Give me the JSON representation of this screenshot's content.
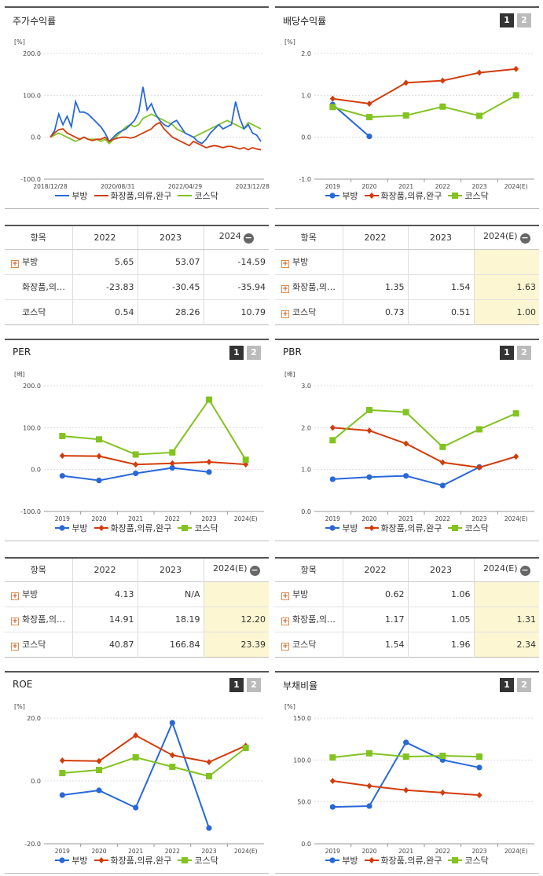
{
  "legend": [
    "부방",
    "화장품,의류,완구",
    "코스닥"
  ],
  "colors": {
    "s1": "#2868d8",
    "s2": "#d23c0a",
    "s3": "#82c320",
    "est": "#fdf6d2"
  },
  "panels": {
    "stock": {
      "title": "주가수익률",
      "unit": "[%]"
    },
    "dividend": {
      "title": "배당수익률",
      "unit": "[%]",
      "pages": [
        "1",
        "2"
      ]
    },
    "per": {
      "title": "PER",
      "unit": "[배]",
      "pages": [
        "1",
        "2"
      ]
    },
    "pbr": {
      "title": "PBR",
      "unit": "[배]",
      "pages": [
        "1",
        "2"
      ]
    },
    "roe": {
      "title": "ROE",
      "unit": "[%]",
      "pages": [
        "1",
        "2"
      ]
    },
    "debt": {
      "title": "부채비율",
      "unit": "[%]",
      "pages": [
        "1",
        "2"
      ]
    }
  },
  "chart_data": [
    {
      "id": "stock",
      "type": "line",
      "title": "주가수익률",
      "ylabel": "[%]",
      "ylim": [
        -100,
        200
      ],
      "yticks": [
        "200.0",
        "100.0",
        "0.0",
        "-100.0"
      ],
      "xticks": [
        "2018/12/28",
        "2020/08/31",
        "2022/04/29",
        "2023/12/28"
      ],
      "series": [
        {
          "name": "부방",
          "values": [
            0,
            15,
            55,
            30,
            50,
            25,
            85,
            60,
            60,
            55,
            45,
            35,
            25,
            10,
            -10,
            0,
            10,
            15,
            20,
            30,
            40,
            60,
            120,
            65,
            80,
            55,
            40,
            30,
            25,
            35,
            40,
            25,
            10,
            5,
            0,
            -10,
            -15,
            -5,
            10,
            20,
            30,
            20,
            25,
            30,
            85,
            45,
            20,
            30,
            10,
            5,
            -10
          ]
        },
        {
          "name": "화장품,의류,완구",
          "values": [
            0,
            10,
            18,
            20,
            10,
            5,
            0,
            -5,
            0,
            -5,
            -8,
            -5,
            -5,
            0,
            -10,
            -5,
            -2,
            0,
            0,
            -2,
            0,
            5,
            10,
            15,
            20,
            30,
            35,
            20,
            10,
            0,
            -5,
            -10,
            -15,
            -20,
            -10,
            -15,
            -20,
            -25,
            -22,
            -20,
            -22,
            -25,
            -22,
            -22,
            -25,
            -28,
            -25,
            -30,
            -25,
            -28,
            -30
          ]
        },
        {
          "name": "코스닥",
          "values": [
            0,
            5,
            10,
            5,
            0,
            -5,
            -10,
            -5,
            0,
            -5,
            -5,
            -5,
            -10,
            -5,
            -15,
            -5,
            5,
            15,
            25,
            30,
            25,
            30,
            45,
            50,
            55,
            50,
            45,
            40,
            35,
            30,
            20,
            15,
            10,
            5,
            0,
            5,
            10,
            15,
            20,
            25,
            30,
            35,
            40,
            35,
            30,
            25,
            20,
            35,
            30,
            25,
            20
          ]
        }
      ]
    },
    {
      "id": "dividend",
      "type": "line",
      "title": "배당수익률",
      "ylabel": "[%]",
      "ylim": [
        -1,
        2
      ],
      "yticks": [
        "2.0",
        "1.0",
        "0.0",
        "-1.0"
      ],
      "categories": [
        "2019",
        "2020",
        "2021",
        "2022",
        "2023",
        "2024(E)"
      ],
      "series": [
        {
          "name": "부방",
          "values": [
            0.78,
            0.02,
            null,
            null,
            null,
            null
          ]
        },
        {
          "name": "화장품,의류,완구",
          "values": [
            0.92,
            0.8,
            1.3,
            1.35,
            1.54,
            1.63
          ]
        },
        {
          "name": "코스닥",
          "values": [
            0.72,
            0.48,
            0.52,
            0.73,
            0.51,
            1.0
          ]
        }
      ]
    },
    {
      "id": "per",
      "type": "line",
      "title": "PER",
      "ylabel": "[배]",
      "ylim": [
        -100,
        200
      ],
      "yticks": [
        "200.0",
        "100.0",
        "0.0",
        "-100.0"
      ],
      "categories": [
        "2019",
        "2020",
        "2021",
        "2022",
        "2023",
        "2024(E)"
      ],
      "series": [
        {
          "name": "부방",
          "values": [
            -15,
            -26,
            -9,
            4.13,
            -6,
            null
          ]
        },
        {
          "name": "화장품,의류,완구",
          "values": [
            33,
            32,
            12,
            14.91,
            18.19,
            12.2
          ]
        },
        {
          "name": "코스닥",
          "values": [
            80,
            72,
            36,
            40.87,
            166.84,
            23.39
          ]
        }
      ]
    },
    {
      "id": "pbr",
      "type": "line",
      "title": "PBR",
      "ylabel": "[배]",
      "ylim": [
        0,
        3
      ],
      "yticks": [
        "3.0",
        "2.0",
        "1.0",
        "0.0"
      ],
      "categories": [
        "2019",
        "2020",
        "2021",
        "2022",
        "2023",
        "2024(E)"
      ],
      "series": [
        {
          "name": "부방",
          "values": [
            0.77,
            0.82,
            0.85,
            0.62,
            1.06,
            null
          ]
        },
        {
          "name": "화장품,의류,완구",
          "values": [
            2.0,
            1.93,
            1.62,
            1.17,
            1.05,
            1.31
          ]
        },
        {
          "name": "코스닥",
          "values": [
            1.7,
            2.42,
            2.37,
            1.54,
            1.96,
            2.34
          ]
        }
      ]
    },
    {
      "id": "roe",
      "type": "line",
      "title": "ROE",
      "ylabel": "[%]",
      "ylim": [
        -20,
        20
      ],
      "yticks": [
        "20.0",
        "0.0",
        "-20.0"
      ],
      "categories": [
        "2019",
        "2020",
        "2021",
        "2022",
        "2023",
        "2024(E)"
      ],
      "series": [
        {
          "name": "부방",
          "values": [
            -4.5,
            -3.0,
            -8.5,
            18.5,
            -15.0,
            null
          ]
        },
        {
          "name": "화장품,의류,완구",
          "values": [
            6.5,
            6.3,
            14.5,
            8.2,
            6.0,
            11.2
          ]
        },
        {
          "name": "코스닥",
          "values": [
            2.5,
            3.5,
            7.5,
            4.5,
            1.5,
            10.5
          ]
        }
      ]
    },
    {
      "id": "debt",
      "type": "line",
      "title": "부채비율",
      "ylabel": "[%]",
      "ylim": [
        0,
        150
      ],
      "yticks": [
        "150.0",
        "100.0",
        "50.0",
        "0.0"
      ],
      "categories": [
        "2019",
        "2020",
        "2021",
        "2022",
        "2023",
        "2024(E)"
      ],
      "series": [
        {
          "name": "부방",
          "values": [
            44,
            45,
            121,
            100,
            91,
            null
          ]
        },
        {
          "name": "화장품,의류,완구",
          "values": [
            75,
            69,
            64,
            61,
            58,
            null
          ]
        },
        {
          "name": "코스닥",
          "values": [
            103,
            108,
            104,
            105,
            104,
            null
          ]
        }
      ]
    }
  ],
  "tables": {
    "stock": {
      "headers": [
        "항목",
        "2022",
        "2023",
        "2024"
      ],
      "rows": [
        {
          "label": "부방",
          "plus": true,
          "cells": [
            "5.65",
            "53.07",
            "-14.59"
          ]
        },
        {
          "label": "화장품,의…",
          "plus": false,
          "cells": [
            "-23.83",
            "-30.45",
            "-35.94"
          ]
        },
        {
          "label": "코스닥",
          "plus": false,
          "cells": [
            "0.54",
            "28.26",
            "10.79"
          ]
        }
      ]
    },
    "dividend": {
      "headers": [
        "항목",
        "2022",
        "2023",
        "2024(E)"
      ],
      "rows": [
        {
          "label": "부방",
          "plus": true,
          "cells": [
            "",
            "",
            ""
          ]
        },
        {
          "label": "화장품,의…",
          "plus": true,
          "cells": [
            "1.35",
            "1.54",
            "1.63"
          ]
        },
        {
          "label": "코스닥",
          "plus": true,
          "cells": [
            "0.73",
            "0.51",
            "1.00"
          ]
        }
      ]
    },
    "per": {
      "headers": [
        "항목",
        "2022",
        "2023",
        "2024(E)"
      ],
      "rows": [
        {
          "label": "부방",
          "plus": true,
          "cells": [
            "4.13",
            "N/A",
            ""
          ]
        },
        {
          "label": "화장품,의…",
          "plus": true,
          "cells": [
            "14.91",
            "18.19",
            "12.20"
          ]
        },
        {
          "label": "코스닥",
          "plus": true,
          "cells": [
            "40.87",
            "166.84",
            "23.39"
          ]
        }
      ]
    },
    "pbr": {
      "headers": [
        "항목",
        "2022",
        "2023",
        "2024(E)"
      ],
      "rows": [
        {
          "label": "부방",
          "plus": true,
          "cells": [
            "0.62",
            "1.06",
            ""
          ]
        },
        {
          "label": "화장품,의…",
          "plus": true,
          "cells": [
            "1.17",
            "1.05",
            "1.31"
          ]
        },
        {
          "label": "코스닥",
          "plus": true,
          "cells": [
            "1.54",
            "1.96",
            "2.34"
          ]
        }
      ]
    }
  }
}
